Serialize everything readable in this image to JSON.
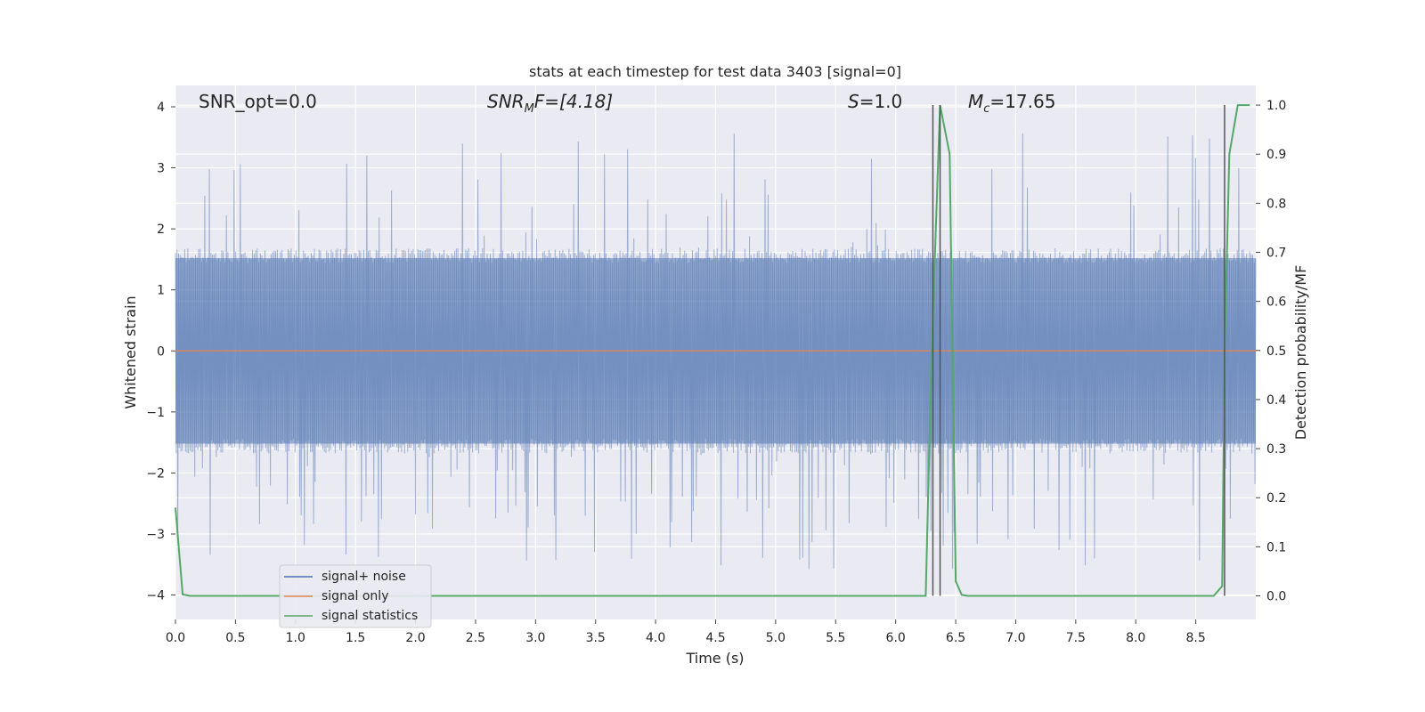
{
  "chart_data": {
    "type": "line",
    "title": "stats at each timestep for test data 3403 [signal=0]",
    "xlabel": "Time (s)",
    "ylabel": "Whitened strain",
    "ylabel_right": "Detection probability/MF",
    "xlim": [
      0.0,
      9.0
    ],
    "ylim": [
      -4.4,
      4.35
    ],
    "ylim_right": [
      -0.048,
      1.04
    ],
    "x_ticks": [
      "0.0",
      "0.5",
      "1.0",
      "1.5",
      "2.0",
      "2.5",
      "3.0",
      "3.5",
      "4.0",
      "4.5",
      "5.0",
      "5.5",
      "6.0",
      "6.5",
      "7.0",
      "7.5",
      "8.0",
      "8.5"
    ],
    "y_ticks": [
      "4",
      "3",
      "2",
      "1",
      "0",
      "−1",
      "−2",
      "−3",
      "−4"
    ],
    "y_right_ticks": [
      "1.0",
      "0.9",
      "0.8",
      "0.7",
      "0.6",
      "0.5",
      "0.4",
      "0.3",
      "0.2",
      "0.1",
      "0.0"
    ],
    "grid": true,
    "legend_position": "lower-left",
    "background": "#eaeaf2",
    "annotations": {
      "snr_opt": "SNR_opt=0.0",
      "snr_mf_main": "SNR",
      "snr_mf_sub": "M",
      "snr_mf_rest": "F=[4.18]",
      "s_main": "S",
      "s_rest": "=1.0",
      "mc_main": "M",
      "mc_sub": "c",
      "mc_rest": "=17.65"
    },
    "series": [
      {
        "name": "signal+ noise",
        "color": "#4c72b0",
        "kind": "noise",
        "envelope": 1.6,
        "peak_max": 3.6,
        "peak_min": -3.6
      },
      {
        "name": "signal only",
        "color": "#dd8452",
        "values_constant": 0.0
      },
      {
        "name": "signal statistics",
        "color": "#55a868",
        "axis": "right",
        "x": [
          0.0,
          0.06,
          0.12,
          6.25,
          6.3,
          6.37,
          6.45,
          6.5,
          6.55,
          6.6,
          8.65,
          8.72,
          8.74,
          8.78,
          8.85,
          8.95
        ],
        "y": [
          0.18,
          0.003,
          0.0,
          0.0,
          0.5,
          1.0,
          0.9,
          0.03,
          0.002,
          0.0,
          0.0,
          0.02,
          0.5,
          0.9,
          1.0,
          1.0
        ]
      }
    ],
    "vlines": [
      6.31,
      6.37,
      8.74
    ],
    "vline_color": "#555555"
  }
}
